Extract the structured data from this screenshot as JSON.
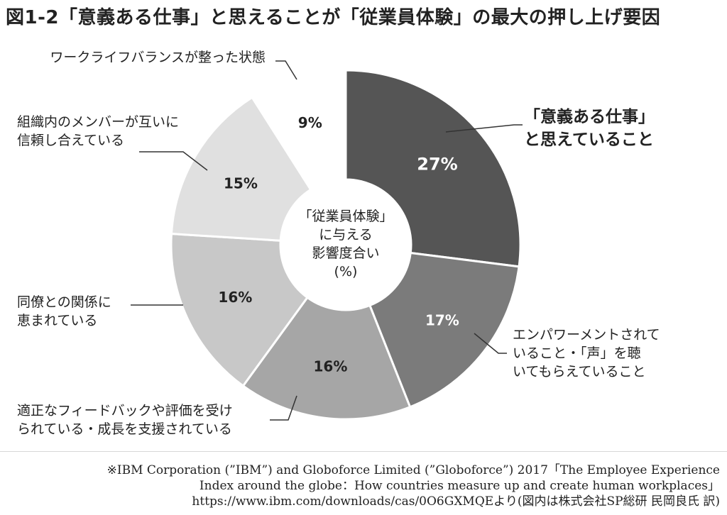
{
  "title": "図1-2「意義ある仕事」と思えることが「従業員体験」の最大の押し上げ要因",
  "chart_data": {
    "type": "pie",
    "center_label": [
      "「従業員体験」",
      "に与える",
      "影響度合い",
      "(%)"
    ],
    "slices": [
      {
        "label": [
          "「意義ある仕事」",
          "と思えていること"
        ],
        "value": 27,
        "display": "27%",
        "color": "#555555"
      },
      {
        "label": [
          "エンパワーメントされて",
          "いること・「声」を聴",
          "いてもらえていること"
        ],
        "value": 17,
        "display": "17%",
        "color": "#7b7b7b"
      },
      {
        "label": [
          "適正なフィードバックや評価を受け",
          "られている・成長を支援されている"
        ],
        "value": 16,
        "display": "16%",
        "color": "#a6a6a6"
      },
      {
        "label": [
          "同僚との関係に",
          "恵まれている"
        ],
        "value": 16,
        "display": "16%",
        "color": "#c8c8c8"
      },
      {
        "label": [
          "組織内のメンバーが互いに",
          "信頼し合えている"
        ],
        "value": 15,
        "display": "15%",
        "color": "#e0e0e0"
      },
      {
        "label": [
          "ワークライフバランスが整った状態"
        ],
        "value": 9,
        "display": "9%",
        "color": "#ffffff"
      }
    ]
  },
  "source": [
    "※IBM Corporation (”IBM”) and Globoforce Limited (”Globoforce”) 2017「The Employee Experience",
    "Index around the globe：How countries measure up and create human workplaces」",
    "https://www.ibm.com/downloads/cas/0O6GXMQEより(図内は株式会社SP総研 民岡良氏 訳)"
  ]
}
